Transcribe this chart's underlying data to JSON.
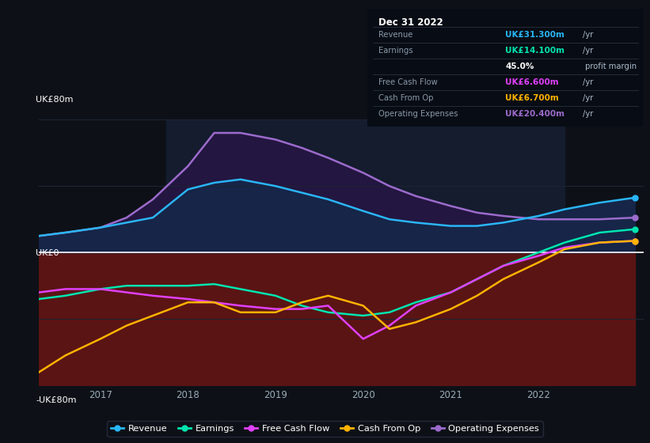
{
  "bg_color": "#0d1117",
  "highlight_bg": "#141c2e",
  "grid_color": "#1e2535",
  "zero_line_color": "#ffffff",
  "ylabel_top": "UK£80m",
  "ylabel_bottom": "-UK£80m",
  "ylabel_zero": "UK£0",
  "ylim": [
    -80,
    80
  ],
  "xlim": [
    2016.3,
    2023.2
  ],
  "xticks": [
    2017,
    2018,
    2019,
    2020,
    2021,
    2022
  ],
  "series": {
    "revenue": {
      "label": "Revenue",
      "color": "#29b6f6",
      "x": [
        2016.3,
        2016.6,
        2017.0,
        2017.3,
        2017.6,
        2018.0,
        2018.3,
        2018.6,
        2019.0,
        2019.3,
        2019.6,
        2020.0,
        2020.3,
        2020.6,
        2021.0,
        2021.3,
        2021.6,
        2022.0,
        2022.3,
        2022.7,
        2023.1
      ],
      "y": [
        10,
        12,
        15,
        18,
        21,
        38,
        42,
        44,
        40,
        36,
        32,
        25,
        20,
        18,
        16,
        16,
        18,
        22,
        26,
        30,
        33
      ]
    },
    "operating_expenses": {
      "label": "Operating Expenses",
      "color": "#9c6bcc",
      "x": [
        2016.3,
        2016.6,
        2017.0,
        2017.3,
        2017.6,
        2018.0,
        2018.3,
        2018.6,
        2019.0,
        2019.3,
        2019.6,
        2020.0,
        2020.3,
        2020.6,
        2021.0,
        2021.3,
        2021.6,
        2022.0,
        2022.3,
        2022.7,
        2023.1
      ],
      "y": [
        10,
        12,
        15,
        21,
        32,
        52,
        72,
        72,
        68,
        63,
        57,
        48,
        40,
        34,
        28,
        24,
        22,
        20,
        20,
        20,
        21
      ]
    },
    "earnings": {
      "label": "Earnings",
      "color": "#00e5b0",
      "x": [
        2016.3,
        2016.6,
        2017.0,
        2017.3,
        2017.6,
        2018.0,
        2018.3,
        2018.6,
        2019.0,
        2019.3,
        2019.6,
        2020.0,
        2020.3,
        2020.6,
        2021.0,
        2021.3,
        2021.6,
        2022.0,
        2022.3,
        2022.7,
        2023.1
      ],
      "y": [
        -28,
        -26,
        -22,
        -20,
        -20,
        -20,
        -19,
        -22,
        -26,
        -32,
        -36,
        -38,
        -36,
        -30,
        -24,
        -16,
        -8,
        0,
        6,
        12,
        14
      ]
    },
    "free_cash_flow": {
      "label": "Free Cash Flow",
      "color": "#e040fb",
      "x": [
        2016.3,
        2016.6,
        2017.0,
        2017.3,
        2017.6,
        2018.0,
        2018.3,
        2018.6,
        2019.0,
        2019.3,
        2019.6,
        2020.0,
        2020.3,
        2020.6,
        2021.0,
        2021.3,
        2021.6,
        2022.0,
        2022.3,
        2022.7,
        2023.1
      ],
      "y": [
        -24,
        -22,
        -22,
        -24,
        -26,
        -28,
        -30,
        -32,
        -34,
        -34,
        -32,
        -52,
        -44,
        -32,
        -24,
        -16,
        -8,
        -2,
        3,
        6,
        7
      ]
    },
    "cash_from_op": {
      "label": "Cash From Op",
      "color": "#ffb300",
      "x": [
        2016.3,
        2016.6,
        2017.0,
        2017.3,
        2017.6,
        2018.0,
        2018.3,
        2018.6,
        2019.0,
        2019.3,
        2019.6,
        2020.0,
        2020.3,
        2020.6,
        2021.0,
        2021.3,
        2021.6,
        2022.0,
        2022.3,
        2022.7,
        2023.1
      ],
      "y": [
        -72,
        -62,
        -52,
        -44,
        -38,
        -30,
        -30,
        -36,
        -36,
        -30,
        -26,
        -32,
        -46,
        -42,
        -34,
        -26,
        -16,
        -6,
        2,
        6,
        7
      ]
    }
  },
  "fill_pos_inner": "#162548",
  "fill_pos_outer": "#231640",
  "fill_neg": "#5a1414",
  "highlight_region_start": 2017.75,
  "highlight_region_end": 2022.3,
  "info_box": {
    "date": "Dec 31 2022",
    "rows": [
      {
        "label": "Revenue",
        "value": "UK£31.300m",
        "unit": "/yr",
        "color": "#29b6f6",
        "indent": false
      },
      {
        "label": "Earnings",
        "value": "UK£14.100m",
        "unit": "/yr",
        "color": "#00e5b0",
        "indent": false
      },
      {
        "label": "",
        "value": "45.0%",
        "unit": " profit margin",
        "color": "#ffffff",
        "indent": true
      },
      {
        "label": "Free Cash Flow",
        "value": "UK£6.600m",
        "unit": "/yr",
        "color": "#e040fb",
        "indent": false
      },
      {
        "label": "Cash From Op",
        "value": "UK£6.700m",
        "unit": "/yr",
        "color": "#ffb300",
        "indent": false
      },
      {
        "label": "Operating Expenses",
        "value": "UK£20.400m",
        "unit": "/yr",
        "color": "#9c6bcc",
        "indent": false
      }
    ]
  },
  "legend": [
    {
      "label": "Revenue",
      "color": "#29b6f6"
    },
    {
      "label": "Earnings",
      "color": "#00e5b0"
    },
    {
      "label": "Free Cash Flow",
      "color": "#e040fb"
    },
    {
      "label": "Cash From Op",
      "color": "#ffb300"
    },
    {
      "label": "Operating Expenses",
      "color": "#9c6bcc"
    }
  ]
}
